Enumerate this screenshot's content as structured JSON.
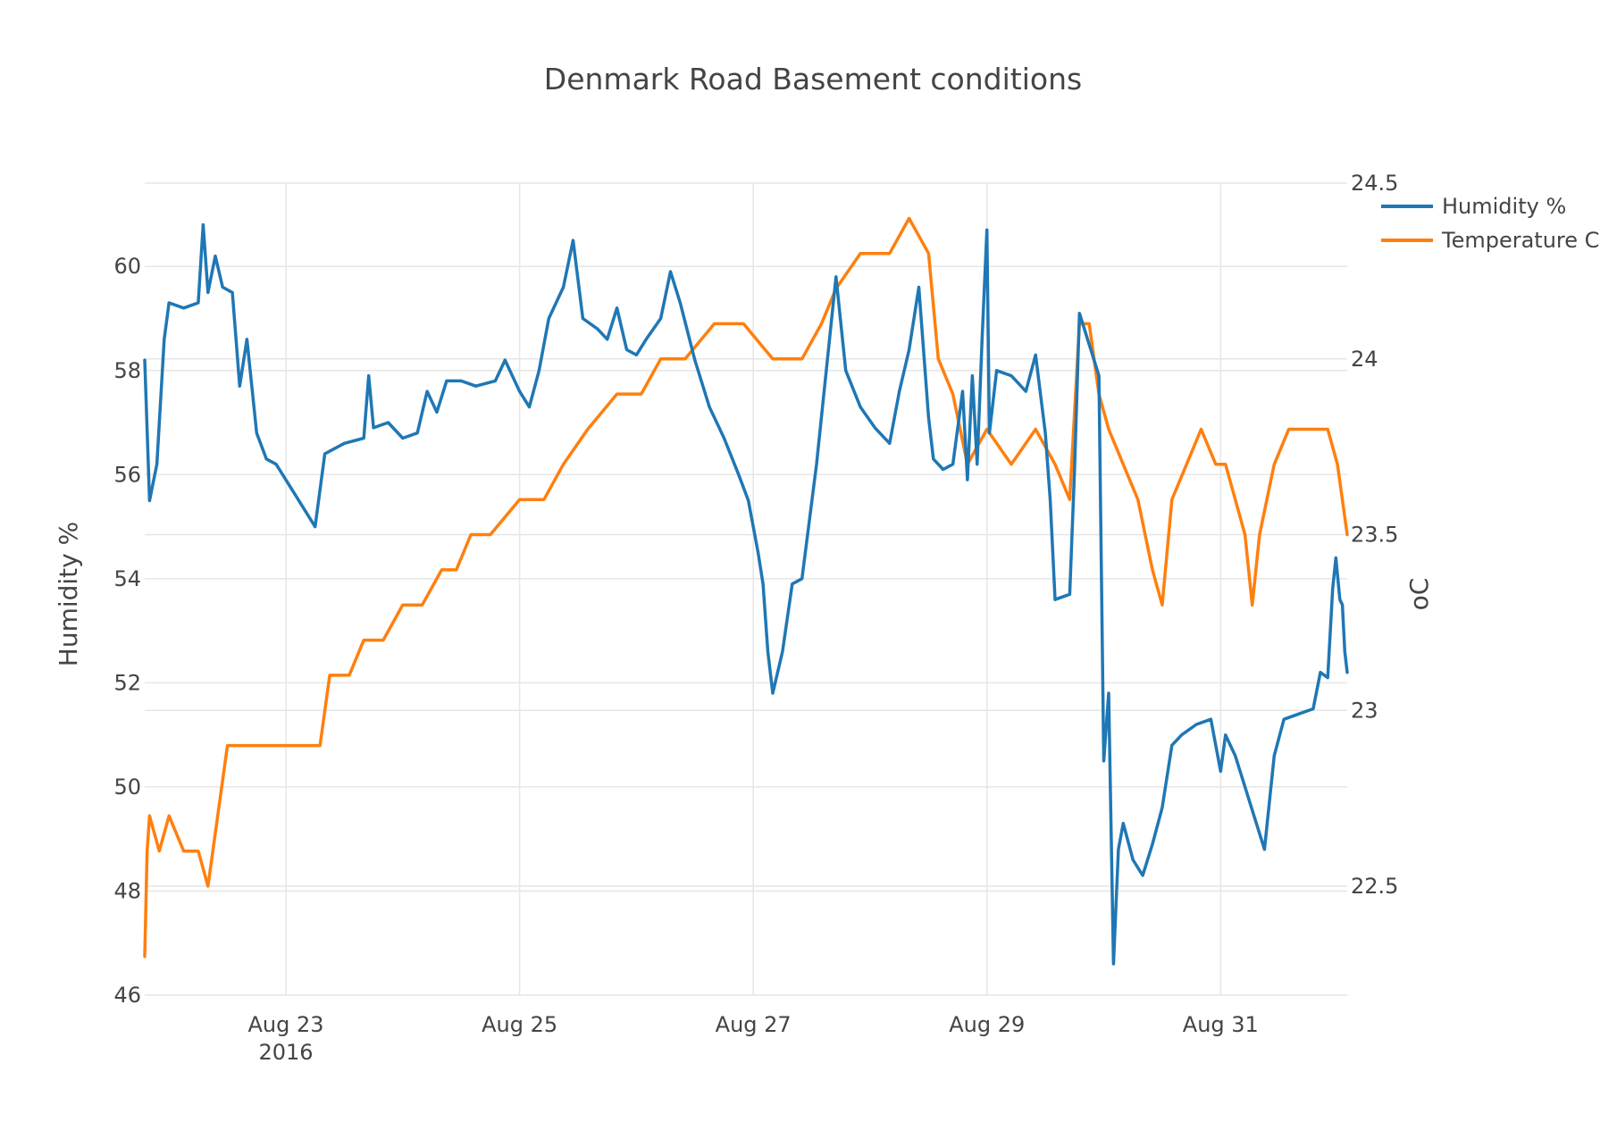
{
  "chart_data": {
    "type": "line",
    "title": "Denmark Road Basement conditions",
    "xaxis": {
      "type": "date",
      "range": [
        "2016-08-21 19:00",
        "2016-09-01 02:00"
      ],
      "ticks": [
        {
          "date": "2016-08-23",
          "label": "Aug 23",
          "sublabel": "2016"
        },
        {
          "date": "2016-08-25",
          "label": "Aug 25"
        },
        {
          "date": "2016-08-27",
          "label": "Aug 27"
        },
        {
          "date": "2016-08-29",
          "label": "Aug 29"
        },
        {
          "date": "2016-08-31",
          "label": "Aug 31"
        }
      ]
    },
    "yaxis": {
      "label": "Humidity %",
      "range": [
        46,
        61.6
      ],
      "ticks": [
        46,
        48,
        50,
        52,
        54,
        56,
        58,
        60
      ],
      "grid": true
    },
    "yaxis2": {
      "label": "oC",
      "range": [
        22.19,
        24.5
      ],
      "ticks": [
        22.5,
        23,
        23.5,
        24,
        24.5
      ],
      "tick_labels": [
        "22.5",
        "23",
        "23.5",
        "24",
        "24.5"
      ],
      "grid": true
    },
    "legend": {
      "position": "top-right"
    },
    "series": [
      {
        "name": "Humidity %",
        "axis": "y",
        "color": "#1f77b4",
        "points": [
          [
            "2016-08-21 19:00",
            58.2
          ],
          [
            "2016-08-21 20:00",
            55.5
          ],
          [
            "2016-08-21 21:30",
            56.2
          ],
          [
            "2016-08-21 23:00",
            58.6
          ],
          [
            "2016-08-22 00:00",
            59.3
          ],
          [
            "2016-08-22 03:00",
            59.2
          ],
          [
            "2016-08-22 06:00",
            59.3
          ],
          [
            "2016-08-22 07:00",
            60.8
          ],
          [
            "2016-08-22 08:00",
            59.5
          ],
          [
            "2016-08-22 09:30",
            60.2
          ],
          [
            "2016-08-22 11:00",
            59.6
          ],
          [
            "2016-08-22 13:00",
            59.5
          ],
          [
            "2016-08-22 14:30",
            57.7
          ],
          [
            "2016-08-22 16:00",
            58.6
          ],
          [
            "2016-08-22 18:00",
            56.8
          ],
          [
            "2016-08-22 20:00",
            56.3
          ],
          [
            "2016-08-22 22:00",
            56.2
          ],
          [
            "2016-08-23 02:00",
            55.6
          ],
          [
            "2016-08-23 06:00",
            55.0
          ],
          [
            "2016-08-23 08:00",
            56.4
          ],
          [
            "2016-08-23 12:00",
            56.6
          ],
          [
            "2016-08-23 16:00",
            56.7
          ],
          [
            "2016-08-23 17:00",
            57.9
          ],
          [
            "2016-08-23 18:00",
            56.9
          ],
          [
            "2016-08-23 21:00",
            57.0
          ],
          [
            "2016-08-24 00:00",
            56.7
          ],
          [
            "2016-08-24 03:00",
            56.8
          ],
          [
            "2016-08-24 05:00",
            57.6
          ],
          [
            "2016-08-24 07:00",
            57.2
          ],
          [
            "2016-08-24 09:00",
            57.8
          ],
          [
            "2016-08-24 12:00",
            57.8
          ],
          [
            "2016-08-24 15:00",
            57.7
          ],
          [
            "2016-08-24 19:00",
            57.8
          ],
          [
            "2016-08-24 21:00",
            58.2
          ],
          [
            "2016-08-25 00:00",
            57.6
          ],
          [
            "2016-08-25 02:00",
            57.3
          ],
          [
            "2016-08-25 04:00",
            58.0
          ],
          [
            "2016-08-25 06:00",
            59.0
          ],
          [
            "2016-08-25 09:00",
            59.6
          ],
          [
            "2016-08-25 11:00",
            60.5
          ],
          [
            "2016-08-25 13:00",
            59.0
          ],
          [
            "2016-08-25 16:00",
            58.8
          ],
          [
            "2016-08-25 18:00",
            58.6
          ],
          [
            "2016-08-25 20:00",
            59.2
          ],
          [
            "2016-08-25 22:00",
            58.4
          ],
          [
            "2016-08-26 00:00",
            58.3
          ],
          [
            "2016-08-26 02:00",
            58.6
          ],
          [
            "2016-08-26 05:00",
            59.0
          ],
          [
            "2016-08-26 07:00",
            59.9
          ],
          [
            "2016-08-26 09:00",
            59.3
          ],
          [
            "2016-08-26 12:00",
            58.2
          ],
          [
            "2016-08-26 15:00",
            57.3
          ],
          [
            "2016-08-26 18:00",
            56.7
          ],
          [
            "2016-08-26 21:00",
            56.0
          ],
          [
            "2016-08-26 23:00",
            55.5
          ],
          [
            "2016-08-27 01:00",
            54.5
          ],
          [
            "2016-08-27 02:00",
            53.9
          ],
          [
            "2016-08-27 03:00",
            52.6
          ],
          [
            "2016-08-27 04:00",
            51.8
          ],
          [
            "2016-08-27 06:00",
            52.6
          ],
          [
            "2016-08-27 08:00",
            53.9
          ],
          [
            "2016-08-27 10:00",
            54.0
          ],
          [
            "2016-08-27 13:00",
            56.2
          ],
          [
            "2016-08-27 15:00",
            58.0
          ],
          [
            "2016-08-27 17:00",
            59.8
          ],
          [
            "2016-08-27 19:00",
            58.0
          ],
          [
            "2016-08-27 22:00",
            57.3
          ],
          [
            "2016-08-28 01:00",
            56.9
          ],
          [
            "2016-08-28 04:00",
            56.6
          ],
          [
            "2016-08-28 06:00",
            57.6
          ],
          [
            "2016-08-28 08:00",
            58.4
          ],
          [
            "2016-08-28 10:00",
            59.6
          ],
          [
            "2016-08-28 12:00",
            57.1
          ],
          [
            "2016-08-28 13:00",
            56.3
          ],
          [
            "2016-08-28 15:00",
            56.1
          ],
          [
            "2016-08-28 17:00",
            56.2
          ],
          [
            "2016-08-28 19:00",
            57.6
          ],
          [
            "2016-08-28 20:00",
            55.9
          ],
          [
            "2016-08-28 21:00",
            57.9
          ],
          [
            "2016-08-28 22:00",
            56.2
          ],
          [
            "2016-08-28 23:00",
            58.6
          ],
          [
            "2016-08-29 00:00",
            60.7
          ],
          [
            "2016-08-29 00:30",
            56.8
          ],
          [
            "2016-08-29 02:00",
            58.0
          ],
          [
            "2016-08-29 05:00",
            57.9
          ],
          [
            "2016-08-29 08:00",
            57.6
          ],
          [
            "2016-08-29 10:00",
            58.3
          ],
          [
            "2016-08-29 12:00",
            56.8
          ],
          [
            "2016-08-29 13:00",
            55.5
          ],
          [
            "2016-08-29 14:00",
            53.6
          ],
          [
            "2016-08-29 17:00",
            53.7
          ],
          [
            "2016-08-29 18:00",
            56.1
          ],
          [
            "2016-08-29 19:00",
            59.1
          ],
          [
            "2016-08-29 21:00",
            58.5
          ],
          [
            "2016-08-29 23:00",
            57.9
          ],
          [
            "2016-08-30 00:00",
            50.5
          ],
          [
            "2016-08-30 01:00",
            51.8
          ],
          [
            "2016-08-30 02:00",
            46.6
          ],
          [
            "2016-08-30 03:00",
            48.8
          ],
          [
            "2016-08-30 04:00",
            49.3
          ],
          [
            "2016-08-30 06:00",
            48.6
          ],
          [
            "2016-08-30 08:00",
            48.3
          ],
          [
            "2016-08-30 10:00",
            48.9
          ],
          [
            "2016-08-30 12:00",
            49.6
          ],
          [
            "2016-08-30 14:00",
            50.8
          ],
          [
            "2016-08-30 16:00",
            51.0
          ],
          [
            "2016-08-30 19:00",
            51.2
          ],
          [
            "2016-08-30 22:00",
            51.3
          ],
          [
            "2016-08-31 00:00",
            50.3
          ],
          [
            "2016-08-31 01:00",
            51.0
          ],
          [
            "2016-08-31 03:00",
            50.6
          ],
          [
            "2016-08-31 05:00",
            50.0
          ],
          [
            "2016-08-31 07:00",
            49.4
          ],
          [
            "2016-08-31 09:00",
            48.8
          ],
          [
            "2016-08-31 11:00",
            50.6
          ],
          [
            "2016-08-31 13:00",
            51.3
          ],
          [
            "2016-08-31 16:00",
            51.4
          ],
          [
            "2016-08-31 19:00",
            51.5
          ],
          [
            "2016-08-31 20:30",
            52.2
          ],
          [
            "2016-08-31 22:00",
            52.1
          ],
          [
            "2016-08-31 23:00",
            53.8
          ],
          [
            "2016-08-31 23:40",
            54.4
          ],
          [
            "2016-09-01 00:30",
            53.6
          ],
          [
            "2016-09-01 01:00",
            53.5
          ],
          [
            "2016-09-01 01:30",
            52.6
          ],
          [
            "2016-09-01 02:00",
            52.2
          ]
        ]
      },
      {
        "name": "Temperature C",
        "axis": "y2",
        "color": "#ff7f0e",
        "points": [
          [
            "2016-08-21 19:00",
            22.3
          ],
          [
            "2016-08-21 19:30",
            22.6
          ],
          [
            "2016-08-21 20:00",
            22.7
          ],
          [
            "2016-08-21 22:00",
            22.6
          ],
          [
            "2016-08-22 00:00",
            22.7
          ],
          [
            "2016-08-22 03:00",
            22.6
          ],
          [
            "2016-08-22 06:00",
            22.6
          ],
          [
            "2016-08-22 08:00",
            22.5
          ],
          [
            "2016-08-22 10:00",
            22.7
          ],
          [
            "2016-08-22 12:00",
            22.9
          ],
          [
            "2016-08-22 14:00",
            22.9
          ],
          [
            "2016-08-22 17:00",
            22.9
          ],
          [
            "2016-08-22 20:00",
            22.9
          ],
          [
            "2016-08-23 00:00",
            22.9
          ],
          [
            "2016-08-23 04:00",
            22.9
          ],
          [
            "2016-08-23 07:00",
            22.9
          ],
          [
            "2016-08-23 09:00",
            23.1
          ],
          [
            "2016-08-23 13:00",
            23.1
          ],
          [
            "2016-08-23 16:00",
            23.2
          ],
          [
            "2016-08-23 20:00",
            23.2
          ],
          [
            "2016-08-24 00:00",
            23.3
          ],
          [
            "2016-08-24 04:00",
            23.3
          ],
          [
            "2016-08-24 08:00",
            23.4
          ],
          [
            "2016-08-24 11:00",
            23.4
          ],
          [
            "2016-08-24 14:00",
            23.5
          ],
          [
            "2016-08-24 18:00",
            23.5
          ],
          [
            "2016-08-25 00:00",
            23.6
          ],
          [
            "2016-08-25 05:00",
            23.6
          ],
          [
            "2016-08-25 09:00",
            23.7
          ],
          [
            "2016-08-25 14:00",
            23.8
          ],
          [
            "2016-08-25 20:00",
            23.9
          ],
          [
            "2016-08-26 01:00",
            23.9
          ],
          [
            "2016-08-26 05:00",
            24.0
          ],
          [
            "2016-08-26 10:00",
            24.0
          ],
          [
            "2016-08-26 16:00",
            24.1
          ],
          [
            "2016-08-26 22:00",
            24.1
          ],
          [
            "2016-08-27 04:00",
            24.0
          ],
          [
            "2016-08-27 10:00",
            24.0
          ],
          [
            "2016-08-27 14:00",
            24.1
          ],
          [
            "2016-08-27 17:00",
            24.2
          ],
          [
            "2016-08-27 22:00",
            24.3
          ],
          [
            "2016-08-28 04:00",
            24.3
          ],
          [
            "2016-08-28 08:00",
            24.4
          ],
          [
            "2016-08-28 12:00",
            24.3
          ],
          [
            "2016-08-28 14:00",
            24.0
          ],
          [
            "2016-08-28 17:00",
            23.9
          ],
          [
            "2016-08-28 20:00",
            23.7
          ],
          [
            "2016-08-29 00:00",
            23.8
          ],
          [
            "2016-08-29 05:00",
            23.7
          ],
          [
            "2016-08-29 10:00",
            23.8
          ],
          [
            "2016-08-29 14:00",
            23.7
          ],
          [
            "2016-08-29 17:00",
            23.6
          ],
          [
            "2016-08-29 19:00",
            24.1
          ],
          [
            "2016-08-29 21:00",
            24.1
          ],
          [
            "2016-08-29 23:00",
            23.9
          ],
          [
            "2016-08-30 01:00",
            23.8
          ],
          [
            "2016-08-30 04:00",
            23.7
          ],
          [
            "2016-08-30 07:00",
            23.6
          ],
          [
            "2016-08-30 10:00",
            23.4
          ],
          [
            "2016-08-30 12:00",
            23.3
          ],
          [
            "2016-08-30 14:00",
            23.6
          ],
          [
            "2016-08-30 17:00",
            23.7
          ],
          [
            "2016-08-30 20:00",
            23.8
          ],
          [
            "2016-08-30 23:00",
            23.7
          ],
          [
            "2016-08-31 01:00",
            23.7
          ],
          [
            "2016-08-31 03:00",
            23.6
          ],
          [
            "2016-08-31 05:00",
            23.5
          ],
          [
            "2016-08-31 06:30",
            23.3
          ],
          [
            "2016-08-31 08:00",
            23.5
          ],
          [
            "2016-08-31 11:00",
            23.7
          ],
          [
            "2016-08-31 14:00",
            23.8
          ],
          [
            "2016-08-31 18:00",
            23.8
          ],
          [
            "2016-08-31 22:00",
            23.8
          ],
          [
            "2016-09-01 00:00",
            23.7
          ],
          [
            "2016-09-01 02:00",
            23.5
          ]
        ]
      }
    ]
  }
}
